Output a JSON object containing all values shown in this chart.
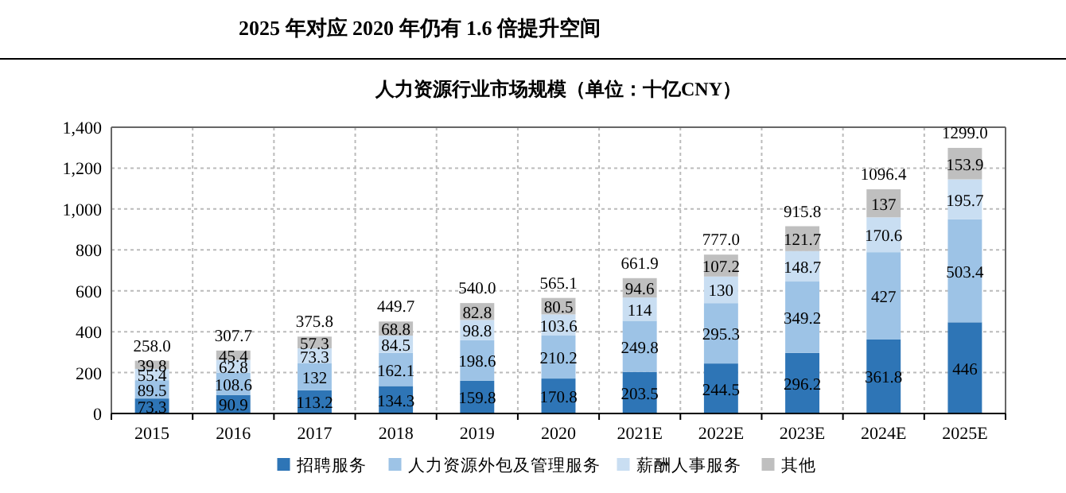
{
  "chart_data": {
    "type": "bar",
    "stacked": true,
    "title": "人力资源行业市场规模（单位：十亿CNY）",
    "annotations": [
      "2025 年对应 2020 年仍有 1.6 倍提升空间"
    ],
    "categories": [
      "2015",
      "2016",
      "2017",
      "2018",
      "2019",
      "2020",
      "2021E",
      "2022E",
      "2023E",
      "2024E",
      "2025E"
    ],
    "series": [
      {
        "name": "招聘服务",
        "color": "#2e75b6",
        "values": [
          73.3,
          90.9,
          113.2,
          134.3,
          159.8,
          170.8,
          203.5,
          244.5,
          296.2,
          361.8,
          446
        ]
      },
      {
        "name": "人力资源外包及管理服务",
        "color": "#9dc3e6",
        "values": [
          89.5,
          108.6,
          132,
          162.1,
          198.6,
          210.2,
          249.8,
          295.3,
          349.2,
          427,
          503.4
        ]
      },
      {
        "name": "薪酬人事服务",
        "color": "#c9def2",
        "values": [
          55.4,
          62.8,
          73.3,
          84.5,
          98.8,
          103.6,
          114,
          130,
          148.7,
          170.6,
          195.7
        ]
      },
      {
        "name": "其他",
        "color": "#bfbfbf",
        "values": [
          39.8,
          45.4,
          57.3,
          68.8,
          82.8,
          80.5,
          94.6,
          107.2,
          121.7,
          137,
          153.9
        ]
      }
    ],
    "data_labels": true,
    "totals": [
      "258.0",
      "307.7",
      "375.8",
      "449.7",
      "540.0",
      "565.1",
      "661.9",
      "777.0",
      "915.8",
      "1096.4",
      "1299.0"
    ],
    "ylim": [
      0,
      1400
    ],
    "yticks": [
      {
        "value": 0,
        "label": "0"
      },
      {
        "value": 200,
        "label": "200"
      },
      {
        "value": 400,
        "label": "400"
      },
      {
        "value": 600,
        "label": "600"
      },
      {
        "value": 800,
        "label": "800"
      },
      {
        "value": 1000,
        "label": "1,000"
      },
      {
        "value": 1200,
        "label": "1,200"
      },
      {
        "value": 1400,
        "label": "1,400"
      }
    ],
    "grid": true,
    "legend": "bottom"
  }
}
